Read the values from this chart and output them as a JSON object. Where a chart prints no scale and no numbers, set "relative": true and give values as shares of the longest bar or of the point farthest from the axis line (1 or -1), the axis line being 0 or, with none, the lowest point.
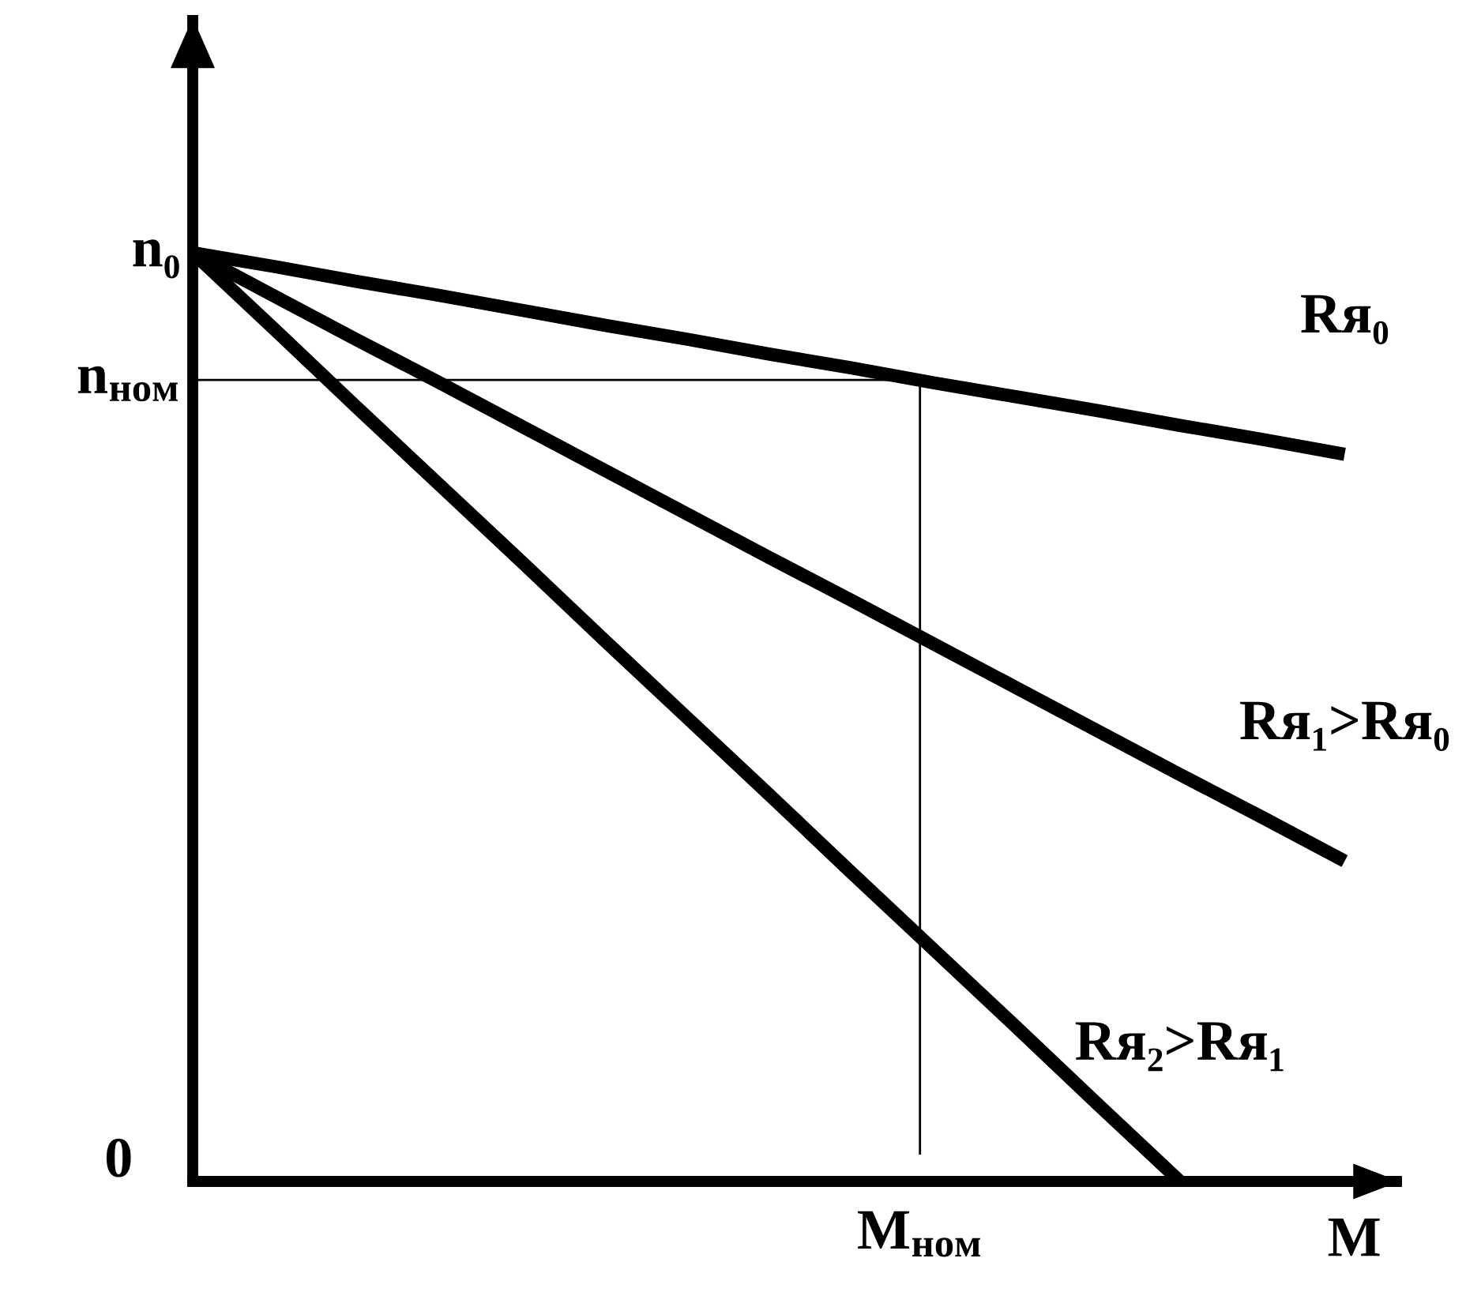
{
  "chart_data": {
    "type": "line",
    "relative": true,
    "xlabel": "M",
    "legend": false,
    "grid": false,
    "marker": "none",
    "line_style": "solid",
    "categories": [
      null,
      null,
      null,
      null,
      null,
      null,
      null,
      null,
      null,
      null,
      null,
      null,
      null,
      null,
      null
    ],
    "series": [
      {
        "name": "Rя₀",
        "color": "#000000",
        "values": [
          1,
          0.985,
          0.969,
          0.954,
          0.938,
          0.922,
          0.907,
          0.891,
          0.876,
          0.86,
          0.845,
          0.83,
          0.814,
          0.799,
          0.783
        ]
      },
      {
        "name": "Rя₁>Rя₀",
        "color": "#000000",
        "values": [
          1,
          0.953,
          0.906,
          0.86,
          0.813,
          0.766,
          0.719,
          0.672,
          0.626,
          0.579,
          0.532,
          0.485,
          0.438,
          0.392,
          0.345
        ]
      },
      {
        "name": "Rя₂>Rя₁",
        "color": "#000000",
        "values": [
          1,
          0.917,
          0.833,
          0.75,
          0.667,
          0.583,
          0.5,
          0.417,
          0.333,
          0.25,
          0.167,
          0.083,
          0,
          null,
          null
        ]
      }
    ],
    "ref_lines": [
      {
        "axis": "y",
        "value": 0.863,
        "label": "n$_{ном}$",
        "color": "#000000"
      }
    ],
    "annotations": [
      "n₀",
      "0",
      "M$_{ном}$"
    ]
  }
}
